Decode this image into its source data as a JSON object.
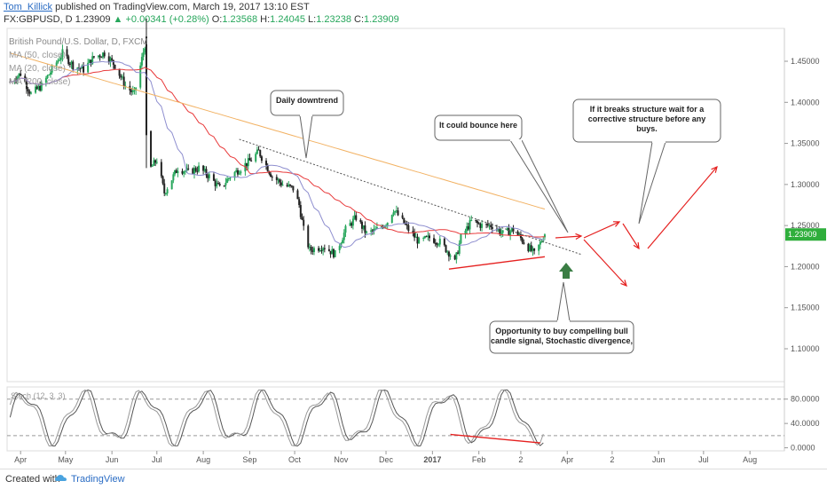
{
  "header": {
    "author": "Tom_Killick",
    "published_text": "published on TradingView.com, March 19, 2017 13:10 EST",
    "symbol": "FX:GBPUSD, D",
    "last": "1.23909",
    "change": "+0.00341 (+0.28%)",
    "o_label": "O:",
    "o_value": "1.23568",
    "h_label": "H:",
    "h_value": "1.24045",
    "l_label": "L:",
    "l_value": "1.23238",
    "c_label": "C:",
    "c_value": "1.23909"
  },
  "footer": {
    "created_with": "Created with",
    "brand": "TradingView"
  },
  "colors": {
    "up": "#26a65b",
    "down": "#222222",
    "ma50": "#e8393a",
    "ma20": "#8e8ecf",
    "ma200": "#f2b162",
    "annotation_red": "#e5201f",
    "price_tag": "#2fae3c",
    "buy_arrow": "#3a7d44",
    "stoch": "#555555"
  },
  "chart_data": [
    {
      "type": "candlestick",
      "legend": [
        "British Pound/U.S. Dollar, D, FXCM",
        "MA (50, close)",
        "MA (20, close)",
        "MA (200, close)"
      ],
      "x_ticks": [
        "Apr",
        "May",
        "Jun",
        "Jul",
        "Aug",
        "Sep",
        "Oct",
        "Nov",
        "Dec",
        "2017",
        "Feb",
        "2",
        "Apr",
        "2",
        "Jun",
        "Jul",
        "Aug"
      ],
      "y_ticks": [
        "1.45000",
        "1.40000",
        "1.35000",
        "1.30000",
        "1.25000",
        "1.20000",
        "1.15000",
        "1.10000"
      ],
      "ylim": [
        1.06,
        1.49
      ],
      "last_price_label": "1.23909",
      "close_path": [
        [
          "2016-03-25",
          1.425
        ],
        [
          "2016-04-01",
          1.435
        ],
        [
          "2016-04-08",
          1.41
        ],
        [
          "2016-04-15",
          1.42
        ],
        [
          "2016-04-22",
          1.44
        ],
        [
          "2016-04-29",
          1.46
        ],
        [
          "2016-05-06",
          1.445
        ],
        [
          "2016-05-13",
          1.44
        ],
        [
          "2016-05-20",
          1.455
        ],
        [
          "2016-05-27",
          1.46
        ],
        [
          "2016-06-03",
          1.445
        ],
        [
          "2016-06-10",
          1.42
        ],
        [
          "2016-06-16",
          1.41
        ],
        [
          "2016-06-23",
          1.47
        ],
        [
          "2016-06-24",
          1.36
        ],
        [
          "2016-06-27",
          1.32
        ],
        [
          "2016-07-01",
          1.33
        ],
        [
          "2016-07-06",
          1.29
        ],
        [
          "2016-07-15",
          1.32
        ],
        [
          "2016-07-22",
          1.315
        ],
        [
          "2016-07-29",
          1.32
        ],
        [
          "2016-08-05",
          1.31
        ],
        [
          "2016-08-12",
          1.295
        ],
        [
          "2016-08-19",
          1.31
        ],
        [
          "2016-08-26",
          1.32
        ],
        [
          "2016-09-02",
          1.33
        ],
        [
          "2016-09-07",
          1.34
        ],
        [
          "2016-09-16",
          1.31
        ],
        [
          "2016-09-23",
          1.3
        ],
        [
          "2016-09-30",
          1.295
        ],
        [
          "2016-10-04",
          1.275
        ],
        [
          "2016-10-07",
          1.245
        ],
        [
          "2016-10-11",
          1.22
        ],
        [
          "2016-10-20",
          1.225
        ],
        [
          "2016-10-28",
          1.215
        ],
        [
          "2016-11-04",
          1.245
        ],
        [
          "2016-11-11",
          1.26
        ],
        [
          "2016-11-18",
          1.24
        ],
        [
          "2016-11-25",
          1.245
        ],
        [
          "2016-12-02",
          1.255
        ],
        [
          "2016-12-06",
          1.27
        ],
        [
          "2016-12-16",
          1.245
        ],
        [
          "2016-12-23",
          1.23
        ],
        [
          "2016-12-30",
          1.235
        ],
        [
          "2017-01-06",
          1.23
        ],
        [
          "2017-01-13",
          1.215
        ],
        [
          "2017-01-16",
          1.205
        ],
        [
          "2017-01-20",
          1.235
        ],
        [
          "2017-01-27",
          1.255
        ],
        [
          "2017-02-03",
          1.25
        ],
        [
          "2017-02-10",
          1.25
        ],
        [
          "2017-02-17",
          1.24
        ],
        [
          "2017-02-24",
          1.245
        ],
        [
          "2017-03-03",
          1.23
        ],
        [
          "2017-03-10",
          1.215
        ],
        [
          "2017-03-13",
          1.225
        ],
        [
          "2017-03-17",
          1.239
        ]
      ],
      "annotations": [
        {
          "text": "Daily downtrend"
        },
        {
          "text": "It could bounce here"
        },
        {
          "text": "If it breaks structure wait for a corrective structure before any buys."
        },
        {
          "text": "Opportunity to buy compelling bull candle signal, Stochastic divergence,"
        }
      ]
    },
    {
      "type": "line",
      "legend": "Stoch (12, 3, 3)",
      "y_ticks": [
        "80.0000",
        "40.0000",
        "0.0000"
      ],
      "ylim": [
        -5,
        100
      ],
      "bands": [
        80,
        20
      ]
    }
  ]
}
